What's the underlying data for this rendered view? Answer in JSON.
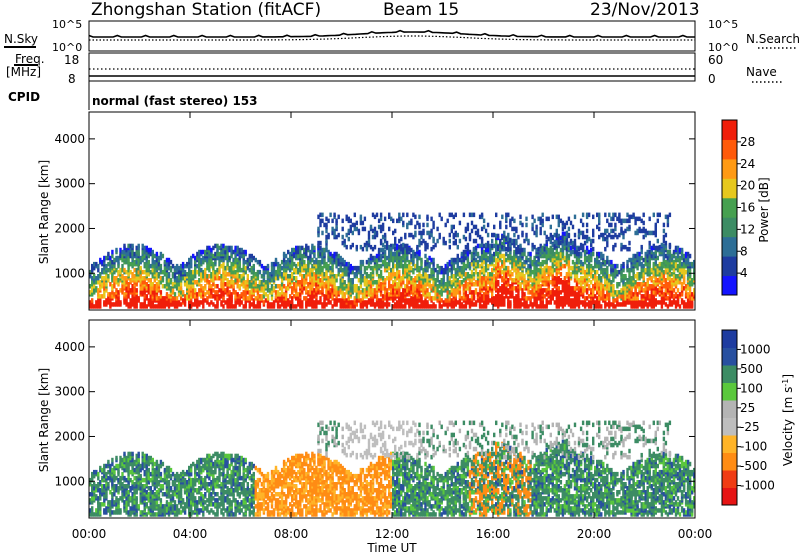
{
  "header": {
    "station": "Zhongshan Station (fitACF)",
    "beam": "Beam 15",
    "date": "23/Nov/2013"
  },
  "top_panels": {
    "nsky_label": "N.Sky",
    "nsky_ticks": [
      "10^5",
      "10^0"
    ],
    "nsearch_label": "N.Search",
    "nsearch_ticks": [
      "10^5",
      "10^0"
    ],
    "freq_label_1": "Freq.",
    "freq_label_2": "[MHz]",
    "freq_ticks": [
      "18",
      "8"
    ],
    "nave_label": "Nave",
    "nave_ticks": [
      "60",
      "0"
    ],
    "cpid_label": "CPID",
    "cpid_text": "normal (fast stereo) 153"
  },
  "colors": {
    "power_scale": [
      "#1414ff",
      "#1e3ca0",
      "#2d6e96",
      "#3c8c64",
      "#46a050",
      "#e6c81e",
      "#ff9a14",
      "#ff5a0a",
      "#f01e0a"
    ],
    "velocity_scale": [
      "#e61414",
      "#f03c14",
      "#ff8c14",
      "#ffb428",
      "#bebebe",
      "#b4b4b4",
      "#5ac83c",
      "#3c8c64",
      "#2850a0",
      "#1e3ca0"
    ],
    "ground_scatter": "#bebebe"
  },
  "chart_data": [
    {
      "type": "heatmap",
      "title": "",
      "xlabel": "Time UT",
      "ylabel": "Slant Range [km]",
      "xlim": [
        "00:00",
        "00:00"
      ],
      "x_ticks": [
        "00:00",
        "04:00",
        "08:00",
        "12:00",
        "16:00",
        "20:00",
        "00:00"
      ],
      "ylim": [
        180,
        4600
      ],
      "y_ticks": [
        1000,
        2000,
        3000,
        4000
      ],
      "colorbar": {
        "label": "Power [dB]",
        "range": [
          0,
          32
        ],
        "ticks": [
          4,
          8,
          12,
          16,
          20,
          24,
          28
        ]
      },
      "grid": false
    },
    {
      "type": "heatmap",
      "title": "",
      "xlabel": "Time UT",
      "ylabel": "Slant Range [km]",
      "xlim": [
        "00:00",
        "00:00"
      ],
      "x_ticks": [
        "00:00",
        "04:00",
        "08:00",
        "12:00",
        "16:00",
        "20:00",
        "00:00"
      ],
      "ylim": [
        180,
        4600
      ],
      "y_ticks": [
        1000,
        2000,
        3000,
        4000
      ],
      "colorbar": {
        "label": "Velocity [m s^-1]",
        "ticks": [
          "-1000",
          "-500",
          "-100",
          "-25",
          "25",
          "100",
          "500",
          "1000"
        ]
      },
      "grid": false
    }
  ],
  "axes": {
    "time_ticks": [
      "00:00",
      "04:00",
      "08:00",
      "12:00",
      "16:00",
      "20:00",
      "00:00"
    ],
    "xlabel": "Time UT",
    "ylabel": "Slant Range [km]",
    "power_label": "Power [dB]",
    "velocity_label": "Velocity",
    "velocity_unit": "[m s",
    "velocity_exp": "-1",
    "velocity_unit_close": "]"
  }
}
